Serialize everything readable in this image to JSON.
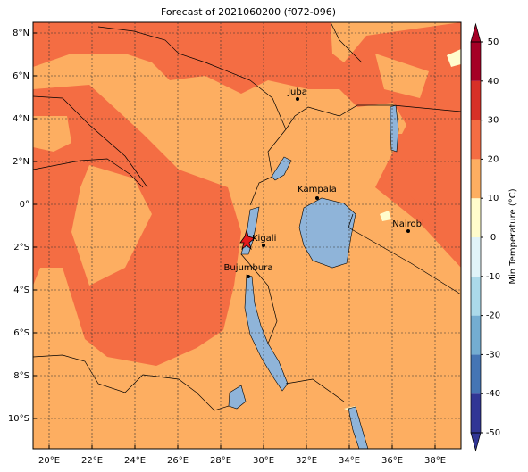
{
  "map": {
    "title": "Forecast of 2021060200 (f072-096)",
    "xticks": [
      {
        "value": 20,
        "label": "20°E"
      },
      {
        "value": 22,
        "label": "22°E"
      },
      {
        "value": 24,
        "label": "24°E"
      },
      {
        "value": 26,
        "label": "26°E"
      },
      {
        "value": 28,
        "label": "28°E"
      },
      {
        "value": 30,
        "label": "30°E"
      },
      {
        "value": 32,
        "label": "32°E"
      },
      {
        "value": 34,
        "label": "34°E"
      },
      {
        "value": 36,
        "label": "36°E"
      },
      {
        "value": 38,
        "label": "38°E"
      }
    ],
    "yticks": [
      {
        "value": 8,
        "label": "8°N"
      },
      {
        "value": 6,
        "label": "6°N"
      },
      {
        "value": 4,
        "label": "4°N"
      },
      {
        "value": 2,
        "label": "2°N"
      },
      {
        "value": 0,
        "label": "0°"
      },
      {
        "value": -2,
        "label": "2°S"
      },
      {
        "value": -4,
        "label": "4°S"
      },
      {
        "value": -6,
        "label": "6°S"
      },
      {
        "value": -8,
        "label": "8°S"
      },
      {
        "value": -10,
        "label": "10°S"
      }
    ],
    "cities": [
      "Juba",
      "Kampala",
      "Nairobi",
      "Kigali",
      "Bujumbura"
    ],
    "colorbar": {
      "label": "Min Temperature (°C)",
      "ticks": [
        -50,
        -40,
        -30,
        -20,
        -10,
        0,
        10,
        20,
        30,
        40,
        50
      ],
      "colors": [
        "#313695",
        "#4575b4",
        "#74add1",
        "#abd9e9",
        "#e0f3f8",
        "#fffccc",
        "#fdae61",
        "#f46d43",
        "#d73027",
        "#a50026"
      ]
    }
  }
}
